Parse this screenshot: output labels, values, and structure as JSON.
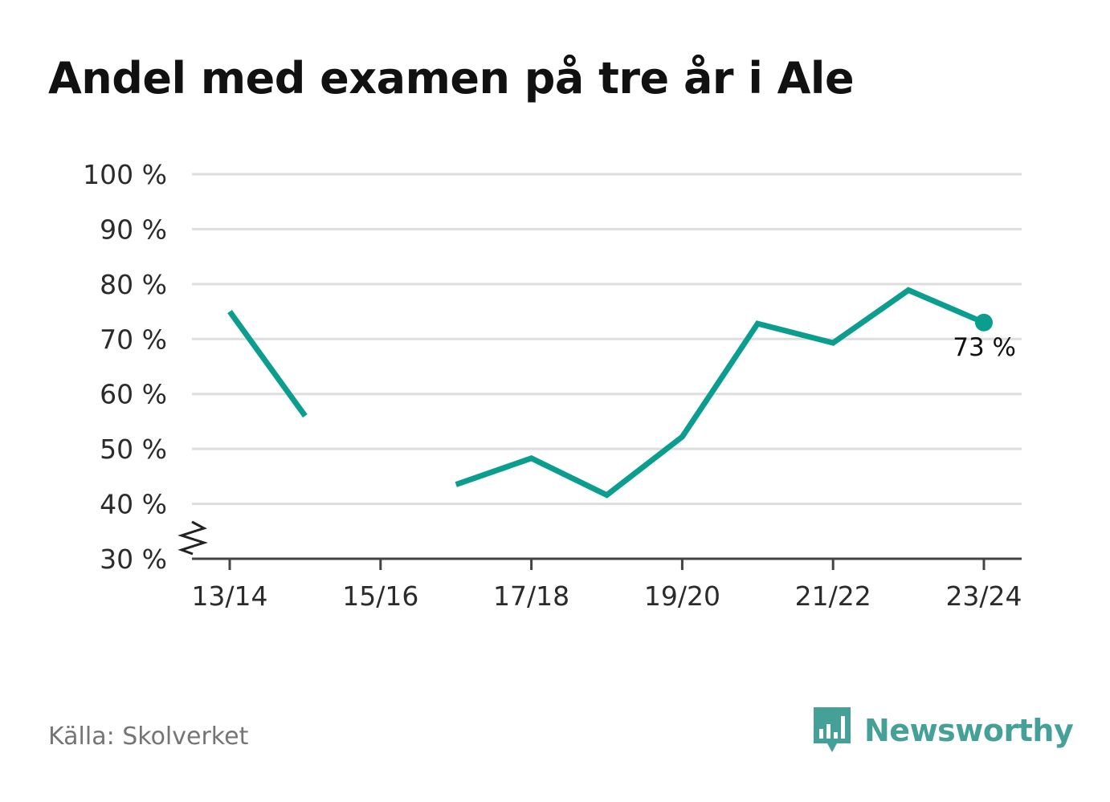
{
  "title": "Andel med examen på tre år i Ale",
  "source": "Källa: Skolverket",
  "brand": {
    "name": "Newsworthy",
    "color": "#45a097",
    "icon": "speech-bubble-bar-chart-icon"
  },
  "colors": {
    "series": "#0b9e8e",
    "grid": "#dedede",
    "axis": "#444444"
  },
  "chart_data": {
    "type": "line",
    "x": [
      "13/14",
      "14/15",
      "15/16",
      "16/17",
      "17/18",
      "18/19",
      "19/20",
      "20/21",
      "21/22",
      "22/23",
      "23/24"
    ],
    "x_tick_labels": [
      "13/14",
      "15/16",
      "17/18",
      "19/20",
      "21/22",
      "23/24"
    ],
    "series": [
      {
        "values": [
          75,
          56,
          null,
          43.5,
          48.3,
          41.6,
          52.2,
          72.8,
          69.3,
          78.9,
          73
        ]
      }
    ],
    "ylim": [
      30,
      100
    ],
    "y_ticks": [
      30,
      40,
      50,
      60,
      70,
      80,
      90,
      100
    ],
    "y_tick_labels": [
      "30 %",
      "40 %",
      "50 %",
      "60 %",
      "70 %",
      "80 %",
      "90 %",
      "100 %"
    ],
    "axis_break": true,
    "grid": true,
    "end_marker": {
      "index": 10,
      "label": "73 %"
    },
    "xlabel": "",
    "ylabel": ""
  }
}
